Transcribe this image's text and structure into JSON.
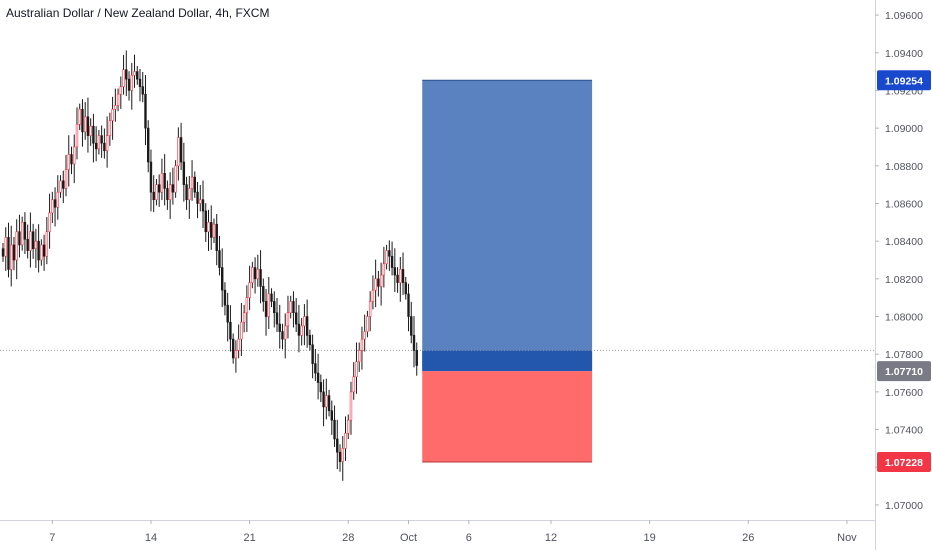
{
  "header": {
    "title": "Australian Dollar / New Zealand Dollar, 4h, FXCM"
  },
  "chart_data": {
    "type": "candlestick",
    "title": "Australian Dollar / New Zealand Dollar, 4h, FXCM",
    "ylim": [
      1.0692,
      1.0968
    ],
    "y_ticks": [
      "1.09600",
      "1.09400",
      "1.09200",
      "1.09000",
      "1.08800",
      "1.08600",
      "1.08400",
      "1.08200",
      "1.08000",
      "1.07800",
      "1.07600",
      "1.07400",
      "1.07200",
      "1.07000"
    ],
    "y_tick_values": [
      1.096,
      1.094,
      1.092,
      1.09,
      1.088,
      1.086,
      1.084,
      1.082,
      1.08,
      1.078,
      1.076,
      1.074,
      1.072,
      1.07
    ],
    "x_ticks": [
      {
        "label": "7",
        "slot": 18
      },
      {
        "label": "14",
        "slot": 54
      },
      {
        "label": "21",
        "slot": 90
      },
      {
        "label": "28",
        "slot": 126
      },
      {
        "label": "Oct",
        "slot": 148
      },
      {
        "label": "6",
        "slot": 170
      },
      {
        "label": "12",
        "slot": 200
      },
      {
        "label": "19",
        "slot": 236
      },
      {
        "label": "26",
        "slot": 272
      },
      {
        "label": "Nov",
        "slot": 308
      }
    ],
    "price_labels": [
      {
        "label": "1.09254",
        "value": 1.09254,
        "color": "#1848cc"
      },
      {
        "label": "1.07710",
        "value": 1.0771,
        "color": "#787b86"
      },
      {
        "label": "1.07228",
        "value": 1.07228,
        "color": "#f23645"
      }
    ],
    "current_price": 1.0782,
    "position": {
      "type": "long",
      "entry": 1.0771,
      "target": 1.09254,
      "stop": 1.07228,
      "start_slot": 153,
      "end_slot": 215,
      "profit_color": "#5a82c1",
      "loss_color": "#ff6b6b",
      "filled_color": "#2357ad"
    },
    "grid": false,
    "closes": [
      1.0832,
      1.0842,
      1.0825,
      1.0838,
      1.083,
      1.0845,
      1.0838,
      1.085,
      1.0841,
      1.0835,
      1.0845,
      1.0836,
      1.084,
      1.083,
      1.0838,
      1.0832,
      1.0845,
      1.0855,
      1.0862,
      1.0858,
      1.0866,
      1.0872,
      1.0868,
      1.0878,
      1.0886,
      1.0881,
      1.089,
      1.0902,
      1.091,
      1.0898,
      1.0906,
      1.0896,
      1.0901,
      1.0892,
      1.0889,
      1.0896,
      1.0892,
      1.0888,
      1.0896,
      1.0904,
      1.091,
      1.0912,
      1.0918,
      1.0922,
      1.0931,
      1.0926,
      1.092,
      1.0928,
      1.093,
      1.0926,
      1.0922,
      1.0918,
      1.09,
      1.0882,
      1.0866,
      1.0862,
      1.087,
      1.0866,
      1.0876,
      1.0868,
      1.0862,
      1.087,
      1.0866,
      1.088,
      1.0895,
      1.0882,
      1.087,
      1.0862,
      1.0868,
      1.0874,
      1.0866,
      1.086,
      1.0862,
      1.0856,
      1.0845,
      1.085,
      1.0842,
      1.0849,
      1.0835,
      1.0826,
      1.0814,
      1.0806,
      1.0797,
      1.0788,
      1.0778,
      1.0782,
      1.0788,
      1.0797,
      1.0802,
      1.081,
      1.0818,
      1.0826,
      1.082,
      1.0825,
      1.0816,
      1.0808,
      1.08,
      1.0812,
      1.0808,
      1.0802,
      1.0796,
      1.0792,
      1.0788,
      1.0795,
      1.0802,
      1.0808,
      1.0802,
      1.0796,
      1.079,
      1.0795,
      1.08,
      1.079,
      1.0785,
      1.0775,
      1.077,
      1.0765,
      1.076,
      1.0752,
      1.0758,
      1.075,
      1.0745,
      1.0735,
      1.0728,
      1.0723,
      1.073,
      1.0738,
      1.0745,
      1.076,
      1.0768,
      1.0776,
      1.0782,
      1.0788,
      1.0792,
      1.08,
      1.0808,
      1.0814,
      1.082,
      1.0816,
      1.0822,
      1.0828,
      1.0835,
      1.0832,
      1.0826,
      1.0822,
      1.0818,
      1.0825,
      1.0818,
      1.0812,
      1.08,
      1.079,
      1.0782,
      1.0774
    ]
  }
}
